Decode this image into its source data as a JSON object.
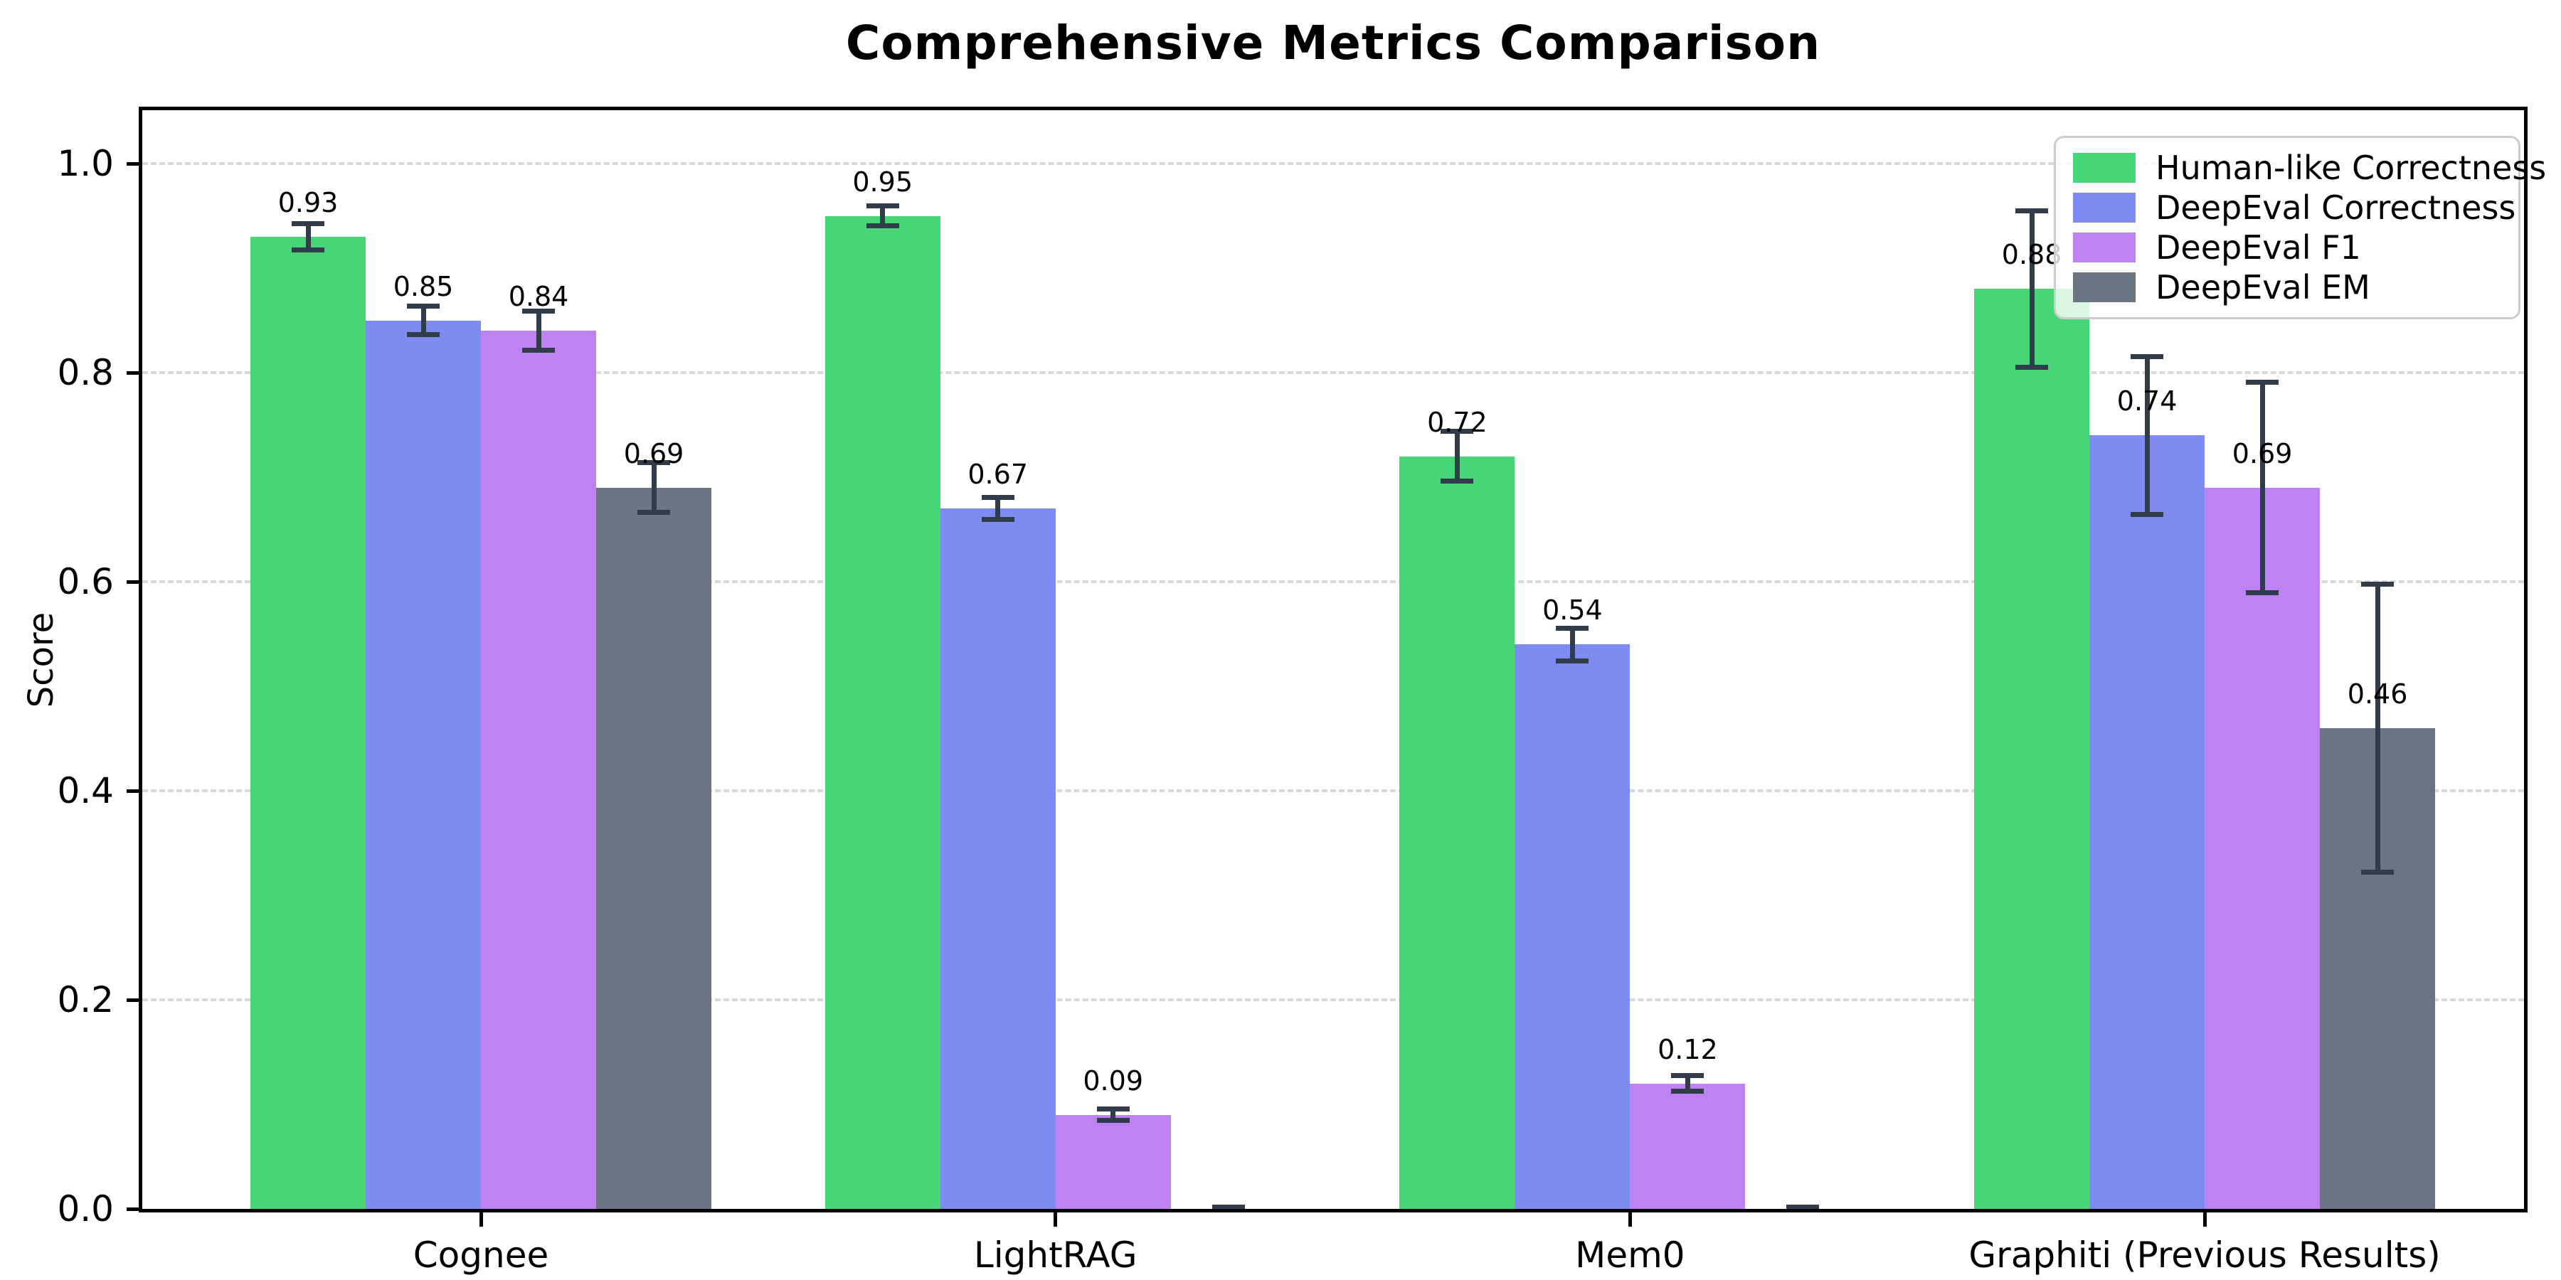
{
  "chart_data": {
    "type": "bar",
    "title": "Comprehensive Metrics Comparison",
    "ylabel": "Score",
    "xlabel": "",
    "categories": [
      "Cognee",
      "LightRAG",
      "Mem0",
      "Graphiti (Previous Results)"
    ],
    "series": [
      {
        "name": "Human-like Correctness",
        "color": "#46d678",
        "values": [
          0.93,
          0.95,
          0.72,
          0.88
        ],
        "errors": [
          0.015,
          0.012,
          0.026,
          0.077
        ],
        "value_labels": [
          "0.93",
          "0.95",
          "0.72",
          "0.88"
        ]
      },
      {
        "name": "DeepEval Correctness",
        "color": "#7e8cf2",
        "values": [
          0.85,
          0.67,
          0.54,
          0.74
        ],
        "errors": [
          0.016,
          0.013,
          0.018,
          0.078
        ],
        "value_labels": [
          "0.85",
          "0.67",
          "0.54",
          "0.74"
        ]
      },
      {
        "name": "DeepEval F1",
        "color": "#bf82f2",
        "values": [
          0.84,
          0.09,
          0.12,
          0.69
        ],
        "errors": [
          0.021,
          0.008,
          0.01,
          0.103
        ],
        "value_labels": [
          "0.84",
          "0.09",
          "0.12",
          "0.69"
        ]
      },
      {
        "name": "DeepEval EM",
        "color": "#6b7483",
        "values": [
          0.69,
          0.0,
          0.0,
          0.46
        ],
        "errors": [
          0.026,
          0.004,
          0.004,
          0.14
        ],
        "value_labels": [
          "0.69",
          "",
          "",
          "0.46"
        ]
      }
    ],
    "ylim": [
      0,
      1.05
    ],
    "yticks": [
      0.0,
      0.2,
      0.4,
      0.6,
      0.8,
      1.0
    ],
    "ytick_labels": [
      "0.0",
      "0.2",
      "0.4",
      "0.6",
      "0.8",
      "1.0"
    ],
    "grid": {
      "axis": "y",
      "style": "dashed",
      "color": "#d9d9d9"
    },
    "legend_position": "upper-right",
    "error_bar_color": "#313c4a",
    "axis_color": "#000000",
    "background_color": "#ffffff"
  }
}
